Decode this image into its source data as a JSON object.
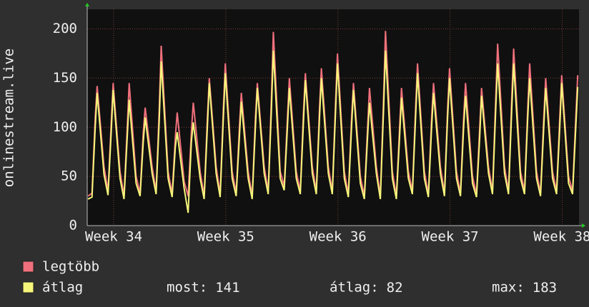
{
  "chart_data": {
    "type": "line",
    "y_label": "onlinestream.live",
    "xlim": [
      0,
      30.7
    ],
    "ylim": [
      0,
      220
    ],
    "yticks": [
      0,
      50,
      100,
      150,
      200
    ],
    "xticks": [
      {
        "value": 1.65,
        "label": "Week 34"
      },
      {
        "value": 8.65,
        "label": "Week 35"
      },
      {
        "value": 15.65,
        "label": "Week 36"
      },
      {
        "value": 22.65,
        "label": "Week 37"
      },
      {
        "value": 29.65,
        "label": "Week 38"
      }
    ],
    "grid": true,
    "x": [
      0.05,
      0.3,
      0.5,
      0.62,
      1.05,
      1.3,
      1.5,
      1.62,
      2.05,
      2.3,
      2.5,
      2.62,
      3.05,
      3.3,
      3.5,
      3.62,
      4.05,
      4.3,
      4.5,
      4.62,
      5.05,
      5.3,
      5.5,
      5.62,
      6.05,
      6.3,
      6.5,
      6.62,
      7.05,
      7.3,
      7.5,
      7.62,
      8.05,
      8.3,
      8.5,
      8.62,
      9.05,
      9.3,
      9.5,
      9.62,
      10.05,
      10.3,
      10.5,
      10.62,
      11.05,
      11.3,
      11.5,
      11.62,
      12.05,
      12.3,
      12.5,
      12.62,
      13.05,
      13.3,
      13.5,
      13.62,
      14.05,
      14.3,
      14.5,
      14.62,
      15.05,
      15.3,
      15.5,
      15.62,
      16.05,
      16.3,
      16.5,
      16.62,
      17.05,
      17.3,
      17.5,
      17.62,
      18.05,
      18.3,
      18.5,
      18.62,
      19.05,
      19.3,
      19.5,
      19.62,
      20.05,
      20.3,
      20.5,
      20.62,
      21.05,
      21.3,
      21.5,
      21.62,
      22.05,
      22.3,
      22.5,
      22.62,
      23.05,
      23.3,
      23.5,
      23.62,
      24.05,
      24.3,
      24.5,
      24.62,
      25.05,
      25.3,
      25.5,
      25.62,
      26.05,
      26.3,
      26.5,
      26.62,
      27.05,
      27.3,
      27.5,
      27.62,
      28.05,
      28.3,
      28.5,
      28.62,
      29.05,
      29.3,
      29.5,
      29.62,
      30.05,
      30.3,
      30.5,
      30.62
    ],
    "series": [
      {
        "name": "legtöbb",
        "color": "#f0707c",
        "values": [
          30,
          33,
          110,
          142,
          60,
          35,
          105,
          145,
          55,
          30,
          100,
          145,
          50,
          33,
          95,
          120,
          60,
          35,
          120,
          183,
          55,
          32,
          90,
          115,
          45,
          30,
          95,
          125,
          55,
          30,
          110,
          150,
          60,
          32,
          120,
          165,
          55,
          33,
          100,
          135,
          55,
          30,
          110,
          145,
          60,
          35,
          130,
          197,
          55,
          40,
          110,
          150,
          55,
          35,
          115,
          155,
          60,
          35,
          120,
          160,
          60,
          35,
          125,
          175,
          55,
          32,
          110,
          145,
          50,
          30,
          100,
          140,
          60,
          30,
          130,
          198,
          55,
          30,
          100,
          140,
          55,
          35,
          120,
          165,
          55,
          32,
          110,
          145,
          60,
          33,
          120,
          160,
          55,
          33,
          110,
          145,
          50,
          32,
          100,
          140,
          60,
          35,
          130,
          185,
          60,
          35,
          130,
          180,
          55,
          35,
          120,
          165,
          55,
          33,
          110,
          150,
          55,
          35,
          110,
          153,
          50,
          35,
          110,
          153
        ]
      },
      {
        "name": "átlag",
        "color": "#f5f57a",
        "values": [
          27,
          29,
          100,
          135,
          52,
          31,
          95,
          138,
          48,
          27,
          90,
          128,
          43,
          30,
          85,
          110,
          53,
          32,
          108,
          167,
          48,
          29,
          80,
          95,
          38,
          13,
          85,
          105,
          48,
          27,
          100,
          145,
          53,
          29,
          110,
          155,
          48,
          30,
          90,
          126,
          48,
          27,
          100,
          140,
          53,
          32,
          118,
          178,
          48,
          36,
          100,
          140,
          48,
          32,
          105,
          148,
          53,
          32,
          110,
          150,
          53,
          32,
          115,
          165,
          48,
          29,
          100,
          138,
          43,
          27,
          90,
          125,
          53,
          27,
          118,
          178,
          48,
          27,
          90,
          130,
          48,
          32,
          110,
          155,
          48,
          29,
          100,
          135,
          53,
          30,
          110,
          150,
          48,
          30,
          100,
          132,
          43,
          29,
          90,
          132,
          53,
          32,
          118,
          165,
          53,
          32,
          118,
          165,
          48,
          32,
          110,
          150,
          48,
          30,
          100,
          140,
          48,
          32,
          100,
          145,
          43,
          32,
          100,
          141
        ]
      }
    ],
    "legend": "bottom-left",
    "stats": [
      {
        "label": "most:",
        "value": 141
      },
      {
        "label": "átlag:",
        "value": 82
      },
      {
        "label": "max:",
        "value": 183
      }
    ]
  }
}
